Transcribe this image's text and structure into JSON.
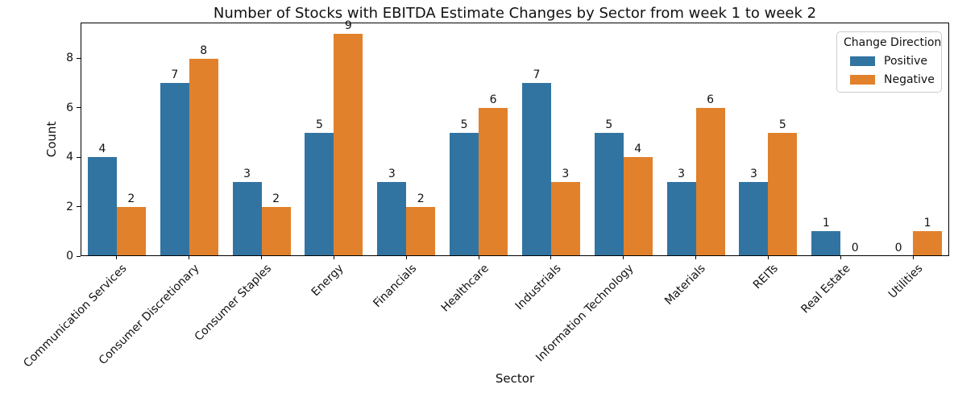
{
  "chart_data": {
    "type": "bar",
    "title": "Number of Stocks with EBITDA Estimate Changes by Sector from week 1 to week 2",
    "xlabel": "Sector",
    "ylabel": "Count",
    "categories": [
      "Communication Services",
      "Consumer Discretionary",
      "Consumer Staples",
      "Energy",
      "Financials",
      "Healthcare",
      "Industrials",
      "Information Technology",
      "Materials",
      "REITs",
      "Real Estate",
      "Utilities"
    ],
    "series": [
      {
        "name": "Positive",
        "color": "#3274a1",
        "values": [
          4,
          7,
          3,
          5,
          3,
          5,
          7,
          5,
          3,
          3,
          1,
          0
        ]
      },
      {
        "name": "Negative",
        "color": "#e1812c",
        "values": [
          2,
          8,
          2,
          9,
          2,
          6,
          3,
          4,
          6,
          5,
          0,
          1
        ]
      }
    ],
    "ylim": [
      0,
      9.45
    ],
    "yticks": [
      0,
      2,
      4,
      6,
      8
    ],
    "grid": false,
    "bar_labels": true,
    "legend": {
      "title": "Change Direction",
      "position": "upper right"
    }
  },
  "colors": {
    "spine": "#000000",
    "text": "#111111",
    "legend_border": "#cccccc"
  }
}
